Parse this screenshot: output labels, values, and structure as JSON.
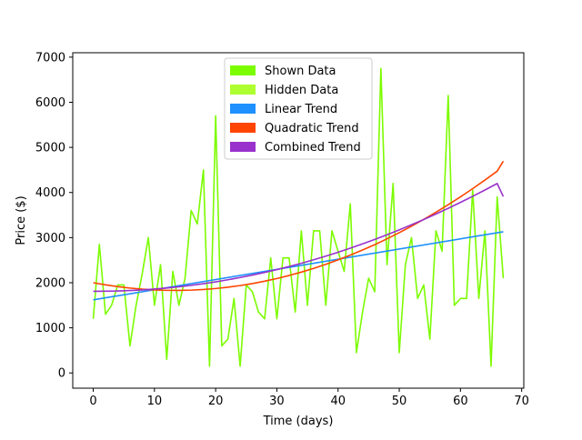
{
  "chart_data": {
    "type": "line",
    "title": "",
    "xlabel": "Time (days)",
    "ylabel": "Price ($)",
    "xlim": [
      -3.35,
      70.35
    ],
    "ylim": [
      -338,
      7098
    ],
    "x_ticks": [
      0,
      10,
      20,
      30,
      40,
      50,
      60,
      70
    ],
    "y_ticks": [
      0,
      1000,
      2000,
      3000,
      4000,
      5000,
      6000,
      7000
    ],
    "grid": false,
    "legend_position": "top-center",
    "legend": [
      {
        "label": "Shown Data",
        "color": "#7cfc00"
      },
      {
        "label": "Hidden Data",
        "color": "#adff2f"
      },
      {
        "label": "Linear Trend",
        "color": "#1e90ff"
      },
      {
        "label": "Quadratic Trend",
        "color": "#ff4500"
      },
      {
        "label": "Combined Trend",
        "color": "#9932cc"
      }
    ],
    "series": [
      {
        "name": "Shown Data",
        "color": "#7cfc00",
        "x": [
          0,
          1,
          2,
          3,
          4,
          5,
          6,
          7,
          8,
          9,
          10,
          11,
          12,
          13,
          14,
          15,
          16,
          17,
          18,
          19,
          20,
          21,
          22,
          23,
          24,
          25,
          26,
          27,
          28,
          29,
          30,
          31,
          32,
          33,
          34,
          35,
          36,
          37,
          38,
          39,
          40,
          41,
          42,
          43,
          44,
          45,
          46,
          47,
          48,
          49,
          50,
          51,
          52,
          53,
          54,
          55,
          56,
          57,
          58,
          59,
          60,
          61,
          62,
          63,
          64,
          65,
          66,
          67
        ],
        "values": [
          1200,
          2850,
          1300,
          1500,
          1950,
          1950,
          600,
          1500,
          2200,
          3000,
          1500,
          2400,
          300,
          2250,
          1500,
          2100,
          3600,
          3300,
          4500,
          150,
          5700,
          600,
          750,
          1650,
          150,
          1950,
          1800,
          1350,
          1200,
          2550,
          1200,
          2550,
          2550,
          1350,
          3150,
          1500,
          3150,
          3150,
          1500,
          3150,
          2700,
          2250,
          3750,
          450,
          1350,
          2100,
          1800,
          6750,
          2400,
          4200,
          450,
          2400,
          3000,
          1650,
          1950,
          750,
          3150,
          2700,
          6150,
          1500,
          1650,
          1650,
          4050,
          1650,
          3150,
          150,
          3900,
          2100
        ]
      },
      {
        "name": "Linear Trend",
        "color": "#1e90ff",
        "x": [
          0,
          67
        ],
        "values": [
          1620,
          3130
        ]
      },
      {
        "name": "Quadratic Trend",
        "color": "#ff4500",
        "x": [
          0,
          2,
          4,
          6,
          8,
          10,
          12,
          14,
          16,
          18,
          20,
          22,
          24,
          26,
          28,
          30,
          32,
          34,
          36,
          38,
          40,
          42,
          44,
          46,
          48,
          50,
          52,
          54,
          56,
          58,
          60,
          62,
          64,
          66,
          67
        ],
        "values": [
          2000,
          1953,
          1913,
          1881,
          1857,
          1840,
          1831,
          1830,
          1836,
          1850,
          1871,
          1900,
          1937,
          1981,
          2033,
          2093,
          2160,
          2235,
          2317,
          2407,
          2505,
          2611,
          2724,
          2844,
          2973,
          3109,
          3252,
          3403,
          3562,
          3729,
          3903,
          4085,
          4275,
          4472,
          4694
        ]
      },
      {
        "name": "Combined Trend",
        "color": "#9932cc",
        "x": [
          0,
          2,
          4,
          6,
          8,
          10,
          12,
          14,
          16,
          18,
          20,
          22,
          24,
          26,
          28,
          30,
          32,
          34,
          36,
          38,
          40,
          42,
          44,
          46,
          48,
          50,
          52,
          54,
          56,
          58,
          60,
          62,
          64,
          66,
          67
        ],
        "values": [
          1810,
          1811,
          1816,
          1826,
          1840,
          1859,
          1882,
          1910,
          1942,
          1978,
          2019,
          2065,
          2115,
          2169,
          2228,
          2291,
          2359,
          2431,
          2508,
          2589,
          2675,
          2765,
          2860,
          2959,
          3063,
          3171,
          3284,
          3401,
          3523,
          3649,
          3780,
          3915,
          4055,
          4199,
          3910
        ]
      }
    ]
  }
}
